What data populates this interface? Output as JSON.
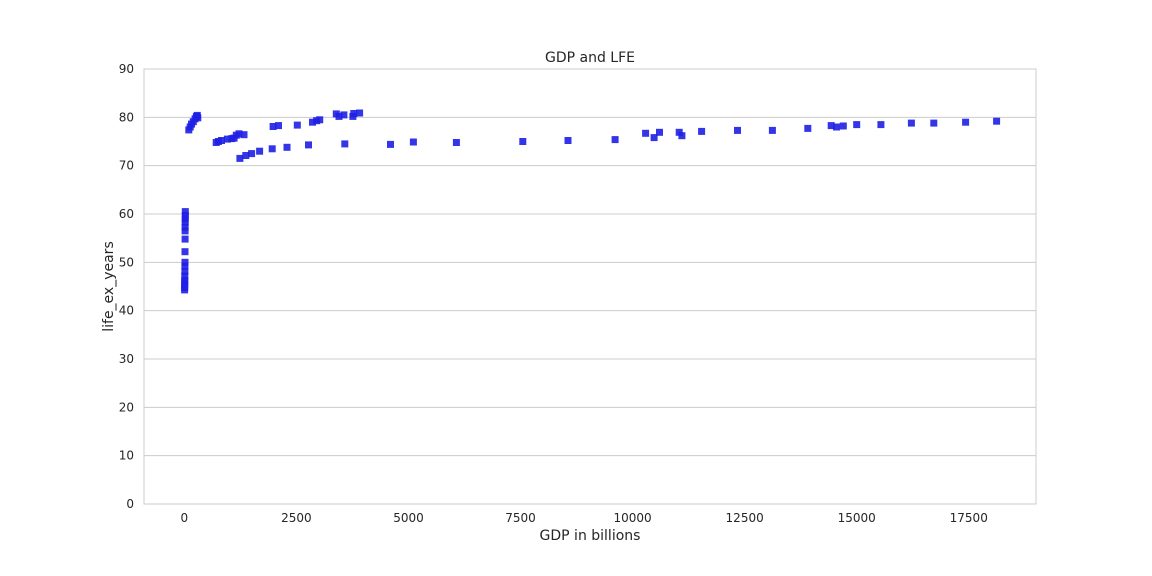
{
  "chart_data": {
    "type": "scatter",
    "title": "GDP and LFE",
    "xlabel": "GDP in billions",
    "ylabel": "life_ex_years",
    "xlim": [
      -900,
      19000
    ],
    "ylim": [
      0,
      90
    ],
    "xticks": [
      0,
      2500,
      5000,
      7500,
      10000,
      12500,
      15000,
      17500
    ],
    "yticks": [
      0,
      10,
      20,
      30,
      40,
      50,
      60,
      70,
      80,
      90
    ],
    "grid": "horizontal",
    "marker": "square",
    "color": "#1f1fe6",
    "series": [
      {
        "points": [
          [
            5,
            44.3
          ],
          [
            7,
            44.8
          ],
          [
            8,
            45.3
          ],
          [
            9,
            45.9
          ],
          [
            10,
            46.3
          ],
          [
            11,
            47.2
          ],
          [
            12,
            48.1
          ],
          [
            13,
            49.2
          ],
          [
            14,
            50.0
          ],
          [
            15,
            52.2
          ],
          [
            16,
            54.8
          ],
          [
            17,
            56.5
          ],
          [
            18,
            57.3
          ],
          [
            19,
            58.3
          ],
          [
            20,
            59.0
          ],
          [
            21,
            59.7
          ],
          [
            22,
            60.5
          ],
          [
            100,
            77.4
          ],
          [
            130,
            78.0
          ],
          [
            160,
            78.6
          ],
          [
            200,
            79.1
          ],
          [
            240,
            79.7
          ],
          [
            270,
            80.2
          ],
          [
            290,
            80.4
          ],
          [
            300,
            79.9
          ],
          [
            710,
            74.8
          ],
          [
            760,
            75.0
          ],
          [
            830,
            75.2
          ],
          [
            960,
            75.5
          ],
          [
            1060,
            75.6
          ],
          [
            1110,
            75.7
          ],
          [
            1160,
            76.3
          ],
          [
            1220,
            76.6
          ],
          [
            1330,
            76.4
          ],
          [
            1240,
            71.5
          ],
          [
            1370,
            72.1
          ],
          [
            1500,
            72.5
          ],
          [
            1680,
            73.0
          ],
          [
            1960,
            73.5
          ],
          [
            2290,
            73.8
          ],
          [
            2770,
            74.3
          ],
          [
            3580,
            74.5
          ],
          [
            4600,
            74.4
          ],
          [
            5110,
            74.9
          ],
          [
            6070,
            74.8
          ],
          [
            7550,
            75.0
          ],
          [
            8560,
            75.2
          ],
          [
            9610,
            75.4
          ],
          [
            1980,
            78.1
          ],
          [
            2100,
            78.3
          ],
          [
            2520,
            78.4
          ],
          [
            2860,
            79.0
          ],
          [
            2950,
            79.3
          ],
          [
            3020,
            79.5
          ],
          [
            3390,
            80.7
          ],
          [
            3450,
            80.2
          ],
          [
            3560,
            80.5
          ],
          [
            3760,
            80.2
          ],
          [
            3780,
            80.8
          ],
          [
            3910,
            80.9
          ],
          [
            10290,
            76.7
          ],
          [
            10480,
            75.8
          ],
          [
            10600,
            76.9
          ],
          [
            11040,
            76.9
          ],
          [
            11100,
            76.2
          ],
          [
            11540,
            77.1
          ],
          [
            12340,
            77.3
          ],
          [
            13120,
            77.3
          ],
          [
            13910,
            77.7
          ],
          [
            14430,
            78.3
          ],
          [
            14550,
            78.0
          ],
          [
            14700,
            78.2
          ],
          [
            15000,
            78.5
          ],
          [
            15540,
            78.5
          ],
          [
            16220,
            78.8
          ],
          [
            16720,
            78.8
          ],
          [
            17430,
            79.0
          ],
          [
            18120,
            79.2
          ]
        ]
      }
    ]
  }
}
